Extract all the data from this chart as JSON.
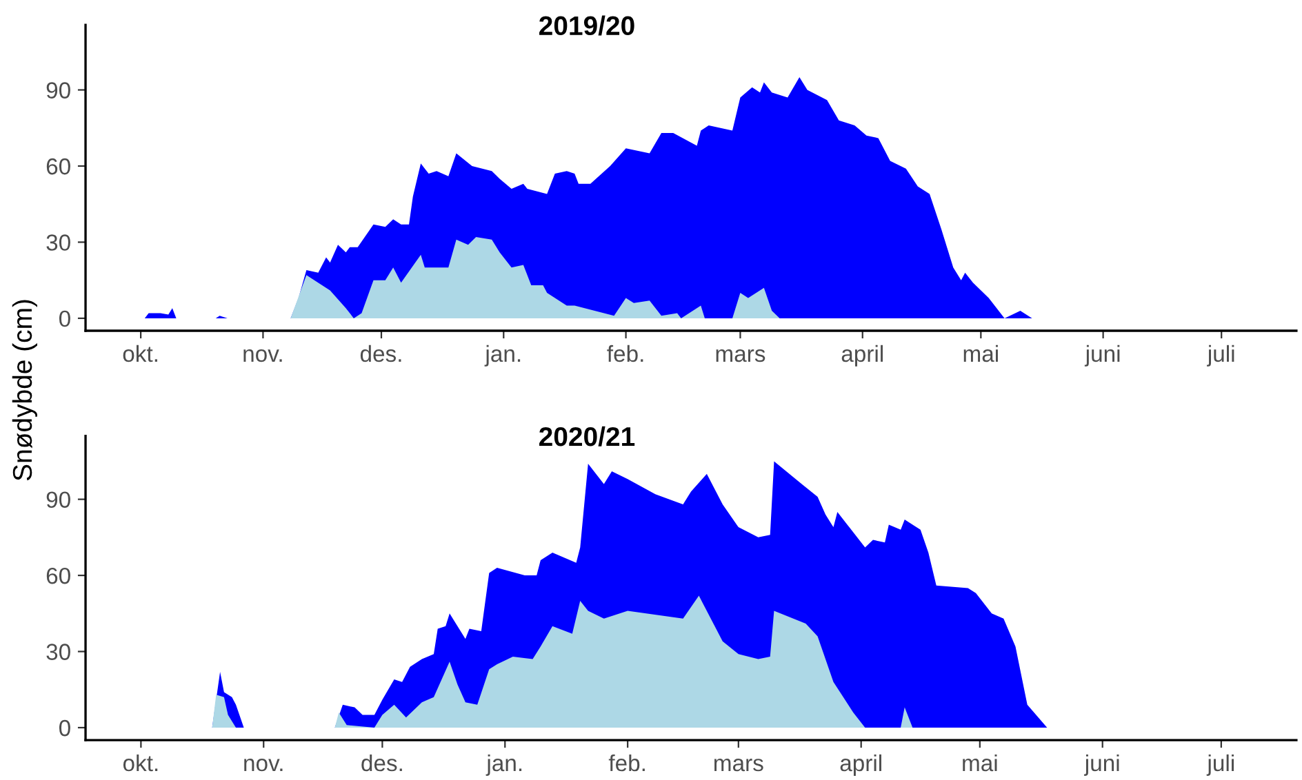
{
  "chart_data": [
    {
      "type": "area",
      "title": "2019/20",
      "ylabel": "Snødybde (cm)",
      "ylim": [
        -4.9,
        115.6
      ],
      "yticks": [
        0,
        30,
        60,
        90
      ],
      "xlim": [
        "2019-09-17",
        "2020-07-20"
      ],
      "xticks": [
        {
          "value": "2019-10-01",
          "label": "okt."
        },
        {
          "value": "2019-11-01",
          "label": "nov."
        },
        {
          "value": "2019-12-01",
          "label": "des."
        },
        {
          "value": "2020-01-01",
          "label": "jan."
        },
        {
          "value": "2020-02-01",
          "label": "feb."
        },
        {
          "value": "2020-03-01",
          "label": "mars"
        },
        {
          "value": "2020-04-01",
          "label": "april"
        },
        {
          "value": "2020-05-01",
          "label": "mai"
        },
        {
          "value": "2020-06-01",
          "label": "juni"
        },
        {
          "value": "2020-07-01",
          "label": "juli"
        }
      ],
      "grid": false,
      "legend": false,
      "series": [
        {
          "color": "#0000ff",
          "x": [
            "2019-10-02",
            "2019-10-03",
            "2019-10-06",
            "2019-10-08",
            "2019-10-09",
            "2019-10-10",
            "2019-10-20",
            "2019-10-21",
            "2019-10-23",
            "2019-11-08",
            "2019-11-10",
            "2019-11-12",
            "2019-11-15",
            "2019-11-17",
            "2019-11-18",
            "2019-11-20",
            "2019-11-22",
            "2019-11-23",
            "2019-11-25",
            "2019-11-29",
            "2019-12-02",
            "2019-12-04",
            "2019-12-06",
            "2019-12-08",
            "2019-12-09",
            "2019-12-11",
            "2019-12-13",
            "2019-12-15",
            "2019-12-18",
            "2019-12-20",
            "2019-12-24",
            "2019-12-29",
            "2019-12-31",
            "2020-01-03",
            "2020-01-06",
            "2020-01-07",
            "2020-01-12",
            "2020-01-14",
            "2020-01-17",
            "2020-01-19",
            "2020-01-20",
            "2020-01-23",
            "2020-01-28",
            "2020-02-01",
            "2020-02-07",
            "2020-02-10",
            "2020-02-13",
            "2020-02-19",
            "2020-02-20",
            "2020-02-22",
            "2020-02-28",
            "2020-03-01",
            "2020-03-04",
            "2020-03-06",
            "2020-03-07",
            "2020-03-09",
            "2020-03-13",
            "2020-03-16",
            "2020-03-18",
            "2020-03-23",
            "2020-03-26",
            "2020-03-30",
            "2020-04-02",
            "2020-04-05",
            "2020-04-08",
            "2020-04-12",
            "2020-04-15",
            "2020-04-18",
            "2020-04-21",
            "2020-04-24",
            "2020-04-26",
            "2020-04-27",
            "2020-04-29",
            "2020-05-03",
            "2020-05-07",
            "2020-05-11",
            "2020-05-14"
          ],
          "values": [
            0,
            2,
            2,
            1.5,
            4,
            0,
            0,
            1,
            0,
            0,
            8,
            19,
            18,
            24,
            22,
            29,
            26,
            28,
            28,
            37,
            36,
            39,
            37,
            37,
            48,
            61,
            57,
            58,
            56,
            65,
            60,
            58,
            55,
            51,
            53,
            51,
            49,
            57,
            58,
            57,
            53,
            53,
            60,
            67,
            65,
            73,
            73,
            68,
            74,
            76,
            74,
            87,
            91,
            89,
            93,
            89,
            87,
            95,
            90,
            86,
            78,
            76,
            72,
            71,
            62,
            59,
            52,
            49,
            35,
            20,
            15,
            18,
            14,
            8,
            0,
            3,
            0
          ]
        },
        {
          "color": "#add8e6",
          "x": [
            "2019-11-08",
            "2019-11-12",
            "2019-11-18",
            "2019-11-22",
            "2019-11-24",
            "2019-11-26",
            "2019-11-29",
            "2019-12-02",
            "2019-12-04",
            "2019-12-06",
            "2019-12-11",
            "2019-12-12",
            "2019-12-18",
            "2019-12-20",
            "2019-12-23",
            "2019-12-25",
            "2019-12-29",
            "2019-12-31",
            "2020-01-03",
            "2020-01-06",
            "2020-01-08",
            "2020-01-11",
            "2020-01-12",
            "2020-01-17",
            "2020-01-19",
            "2020-01-29",
            "2020-02-01",
            "2020-02-03",
            "2020-02-07",
            "2020-02-10",
            "2020-02-14",
            "2020-02-15",
            "2020-02-20",
            "2020-02-21",
            "2020-02-28",
            "2020-03-01",
            "2020-03-03",
            "2020-03-07",
            "2020-03-09",
            "2020-03-11"
          ],
          "values": [
            0,
            17,
            11,
            4,
            0,
            2,
            15,
            15,
            20,
            14,
            25,
            20,
            20,
            31,
            29,
            32,
            31,
            26,
            20,
            21,
            13,
            13,
            10,
            5,
            5,
            1,
            8,
            6,
            7,
            1,
            2,
            0,
            5,
            0,
            0,
            10,
            8,
            12,
            3,
            0
          ]
        }
      ]
    },
    {
      "type": "area",
      "title": "2020/21",
      "ylim": [
        -4.9,
        115
      ],
      "yticks": [
        0,
        30,
        60,
        90
      ],
      "xlim": [
        "2020-09-17",
        "2021-07-20"
      ],
      "xticks": [
        {
          "value": "2020-10-01",
          "label": "okt."
        },
        {
          "value": "2020-11-01",
          "label": "nov."
        },
        {
          "value": "2020-12-01",
          "label": "des."
        },
        {
          "value": "2021-01-01",
          "label": "jan."
        },
        {
          "value": "2021-02-01",
          "label": "feb."
        },
        {
          "value": "2021-03-01",
          "label": "mars"
        },
        {
          "value": "2021-04-01",
          "label": "april"
        },
        {
          "value": "2021-05-01",
          "label": "mai"
        },
        {
          "value": "2021-06-01",
          "label": "juni"
        },
        {
          "value": "2021-07-01",
          "label": "juli"
        }
      ],
      "grid": false,
      "legend": false,
      "series": [
        {
          "color": "#0000ff",
          "x": [
            "2020-10-19",
            "2020-10-21",
            "2020-10-22",
            "2020-10-24",
            "2020-10-25",
            "2020-10-27",
            "2020-11-19",
            "2020-11-21",
            "2020-11-24",
            "2020-11-26",
            "2020-11-29",
            "2020-12-01",
            "2020-12-04",
            "2020-12-06",
            "2020-12-08",
            "2020-12-11",
            "2020-12-14",
            "2020-12-15",
            "2020-12-17",
            "2020-12-18",
            "2020-12-22",
            "2020-12-23",
            "2020-12-26",
            "2020-12-28",
            "2020-12-30",
            "2021-01-06",
            "2021-01-09",
            "2021-01-10",
            "2021-01-13",
            "2021-01-19",
            "2021-01-20",
            "2021-01-22",
            "2021-01-26",
            "2021-01-28",
            "2021-02-01",
            "2021-02-08",
            "2021-02-15",
            "2021-02-17",
            "2021-02-21",
            "2021-02-25",
            "2021-03-01",
            "2021-03-06",
            "2021-03-09",
            "2021-03-10",
            "2021-03-17",
            "2021-03-21",
            "2021-03-23",
            "2021-03-25",
            "2021-03-26",
            "2021-03-29",
            "2021-04-02",
            "2021-04-04",
            "2021-04-07",
            "2021-04-08",
            "2021-04-11",
            "2021-04-12",
            "2021-04-16",
            "2021-04-18",
            "2021-04-20",
            "2021-04-28",
            "2021-04-30",
            "2021-05-04",
            "2021-05-07",
            "2021-05-10",
            "2021-05-13",
            "2021-05-18"
          ],
          "values": [
            0,
            22,
            14,
            12,
            9,
            0,
            0,
            9,
            8,
            5,
            5,
            11,
            19,
            18,
            24,
            27,
            29,
            39,
            40,
            45,
            35,
            39,
            38,
            61,
            63,
            60,
            60,
            66,
            69,
            65,
            71,
            104,
            96,
            101,
            98,
            92,
            88,
            93,
            100,
            88,
            79,
            75,
            76,
            105,
            96,
            91,
            84,
            79,
            85,
            79,
            71,
            74,
            73,
            80,
            78,
            82,
            78,
            69,
            56,
            55,
            53,
            45,
            43,
            32,
            9,
            0
          ]
        },
        {
          "color": "#add8e6",
          "x": [
            "2020-10-19",
            "2020-10-20",
            "2020-10-22",
            "2020-10-23",
            "2020-10-25",
            "2020-11-19",
            "2020-11-20",
            "2020-11-22",
            "2020-11-29",
            "2020-12-01",
            "2020-12-04",
            "2020-12-07",
            "2020-12-11",
            "2020-12-14",
            "2020-12-18",
            "2020-12-20",
            "2020-12-22",
            "2020-12-25",
            "2020-12-28",
            "2020-12-30",
            "2021-01-03",
            "2021-01-08",
            "2021-01-10",
            "2021-01-13",
            "2021-01-18",
            "2021-01-20",
            "2021-01-22",
            "2021-01-26",
            "2021-02-01",
            "2021-02-15",
            "2021-02-19",
            "2021-02-25",
            "2021-03-01",
            "2021-03-06",
            "2021-03-09",
            "2021-03-10",
            "2021-03-18",
            "2021-03-21",
            "2021-03-25",
            "2021-03-30",
            "2021-04-02",
            "2021-04-11",
            "2021-04-12",
            "2021-04-14"
          ],
          "values": [
            0,
            13,
            12,
            5,
            0,
            0,
            6,
            1,
            0,
            5,
            9,
            4,
            10,
            12,
            26,
            17,
            10,
            9,
            23,
            25,
            28,
            27,
            32,
            40,
            37,
            50,
            46,
            43,
            46,
            43,
            52,
            34,
            29,
            27,
            28,
            46,
            41,
            36,
            18,
            6,
            0,
            0,
            8,
            0
          ]
        }
      ]
    }
  ]
}
